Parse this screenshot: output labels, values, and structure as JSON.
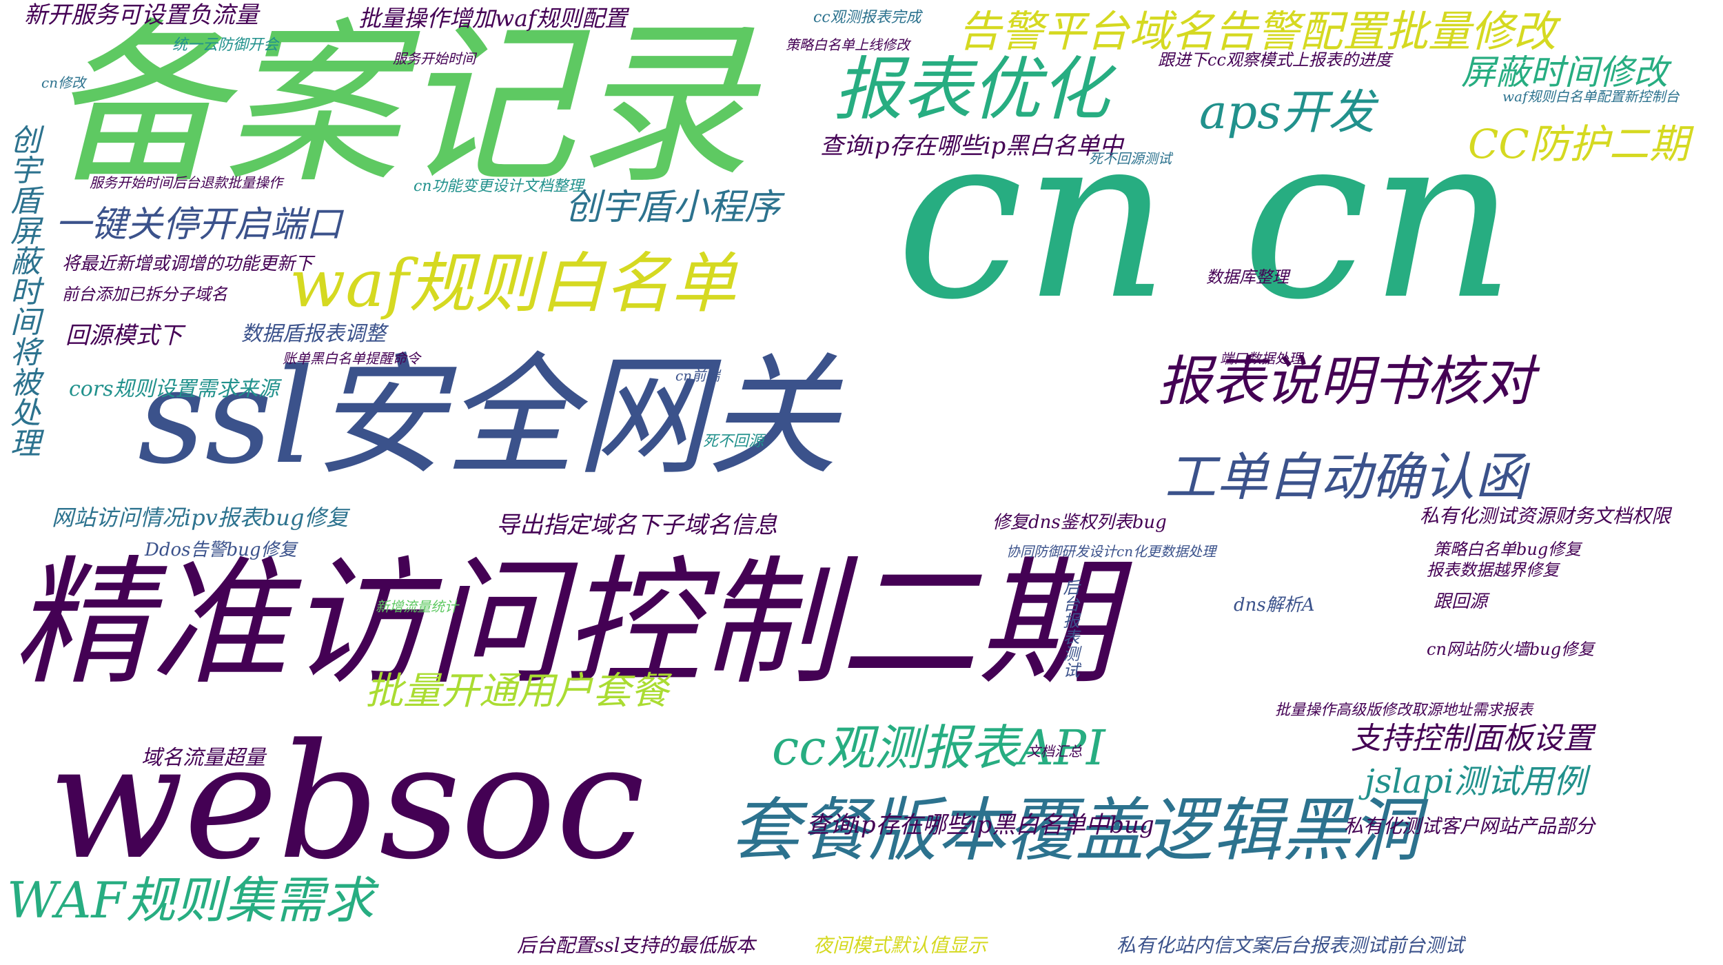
{
  "words": [
    "备案记录",
    "cn cn",
    "精准访问控制二期",
    "ssl安全网关",
    "websoc",
    "套餐版本覆盖逻辑黑洞",
    "报表优化",
    "告警平台域名告警配置批量修改",
    "waf规则白名单",
    "报表说明书核对",
    "工单自动确认函",
    "aps开发",
    "CC防护二期",
    "cc观测报表API",
    "WAF规则集需求",
    "一键关停开启端口",
    "创宇盾小程序",
    "屏蔽时间修改",
    "批量开通用户套餐",
    "jslapi测试用例",
    "支持控制面板设置",
    "查询ip存在哪些ip黑白名单中",
    "查询ip存在哪些ip黑白名单中bug",
    "导出指定域名下子域名信息",
    "网站访问情况ipv报表bug修复",
    "新开服务可设置负流量",
    "批量操作增加waf规则配置",
    "数据盾报表调整",
    "回源模式下",
    "cors规则设置需求来源",
    "域名流量超量",
    "后台配置ssl支持的最低版本",
    "夜间模式默认值显示",
    "私有化站内信文案后台报表测试前台测试",
    "私有化测试客户网站产品部分",
    "私有化测试资源财务文档权限",
    "创宇盾屏蔽时间将被处理",
    "将最近新增或调增的功能更新下",
    "前台添加已拆分子域名",
    "Ddos告警bug修复",
    "修复dns鉴权列表bug",
    "策略白名单bug修复",
    "报表数据越界修复",
    "dns解析A",
    "跟回源",
    "cn网站防火墙bug修复",
    "批量操作高级版修改取源地址需求报表",
    "waf规则白名单配置新控制台",
    "跟进下cc观察模式上报表的进度",
    "cc观测报表完成",
    "策略白名单上线修改",
    "服务开始时间",
    "统一云防御开会",
    "cn修改",
    "cn功能变更设计文档整理",
    "服务开始时间后台退款批量操作",
    "数据库整理",
    "端口数据处理",
    "协同防御研发设计cn化更数据处理",
    "死不回源",
    "cn前端",
    "死不回源测试",
    "账单黑白名单提醒命令",
    "文档汇总",
    "后台报表测试",
    "新增流量统计"
  ]
}
